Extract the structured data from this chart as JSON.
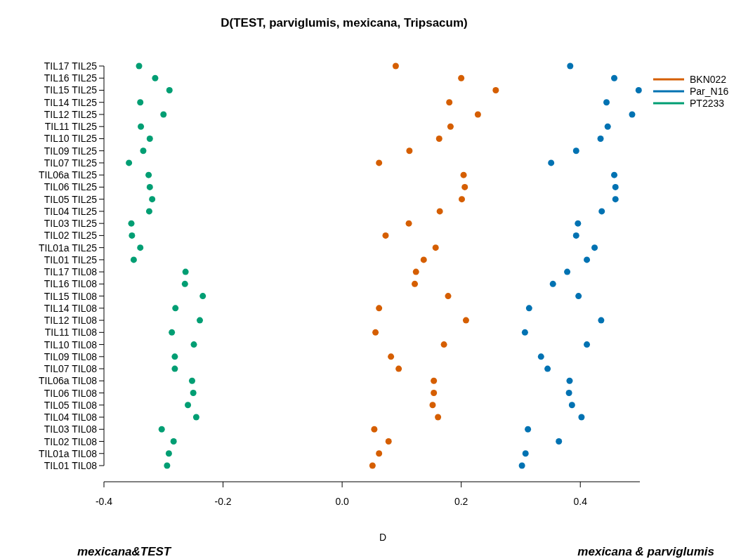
{
  "chart_data": {
    "type": "scatter",
    "orientation": "horizontal",
    "title": "D(TEST, parviglumis, mexicana, Tripsacum)",
    "xlabel": "D",
    "categories": [
      "TIL17 TIL25",
      "TIL16 TIL25",
      "TIL15 TIL25",
      "TIL14 TIL25",
      "TIL12 TIL25",
      "TIL11 TIL25",
      "TIL10 TIL25",
      "TIL09 TIL25",
      "TIL07 TIL25",
      "TIL06a TIL25",
      "TIL06 TIL25",
      "TIL05 TIL25",
      "TIL04 TIL25",
      "TIL03 TIL25",
      "TIL02 TIL25",
      "TIL01a TIL25",
      "TIL01 TIL25",
      "TIL17 TIL08",
      "TIL16 TIL08",
      "TIL15 TIL08",
      "TIL14 TIL08",
      "TIL12 TIL08",
      "TIL11 TIL08",
      "TIL10 TIL08",
      "TIL09 TIL08",
      "TIL07 TIL08",
      "TIL06a TIL08",
      "TIL06 TIL08",
      "TIL05 TIL08",
      "TIL04 TIL08",
      "TIL03 TIL08",
      "TIL02 TIL08",
      "TIL01a TIL08",
      "TIL01 TIL08"
    ],
    "series": [
      {
        "name": "BKN022",
        "color": "#d55e00",
        "values": [
          0.09,
          0.2,
          0.258,
          0.18,
          0.228,
          0.182,
          0.163,
          0.113,
          0.062,
          0.204,
          0.206,
          0.201,
          0.164,
          0.112,
          0.073,
          0.157,
          0.137,
          0.124,
          0.122,
          0.178,
          0.062,
          0.208,
          0.056,
          0.171,
          0.082,
          0.095,
          0.154,
          0.154,
          0.152,
          0.161,
          0.054,
          0.078,
          0.062,
          0.051
        ]
      },
      {
        "name": "Par_N16",
        "color": "#0072b2",
        "values": [
          0.383,
          0.457,
          0.498,
          0.444,
          0.487,
          0.446,
          0.434,
          0.393,
          0.351,
          0.457,
          0.459,
          0.459,
          0.436,
          0.396,
          0.393,
          0.424,
          0.411,
          0.378,
          0.354,
          0.397,
          0.314,
          0.435,
          0.307,
          0.411,
          0.334,
          0.345,
          0.382,
          0.381,
          0.386,
          0.402,
          0.312,
          0.364,
          0.308,
          0.302
        ]
      },
      {
        "name": "PT2233",
        "color": "#009e73",
        "values": [
          -0.341,
          -0.314,
          -0.29,
          -0.339,
          -0.3,
          -0.338,
          -0.323,
          -0.334,
          -0.358,
          -0.325,
          -0.323,
          -0.319,
          -0.324,
          -0.354,
          -0.353,
          -0.339,
          -0.35,
          -0.263,
          -0.264,
          -0.234,
          -0.28,
          -0.239,
          -0.286,
          -0.249,
          -0.281,
          -0.281,
          -0.252,
          -0.25,
          -0.259,
          -0.245,
          -0.303,
          -0.283,
          -0.291,
          -0.294
        ]
      }
    ],
    "xlim": [
      -0.4,
      0.5
    ],
    "xticks": [
      {
        "value": -0.4,
        "label": "-0.4"
      },
      {
        "value": -0.2,
        "label": "-0.2"
      },
      {
        "value": 0,
        "label": "0.0"
      },
      {
        "value": 0.2,
        "label": "0.2"
      },
      {
        "value": 0.4,
        "label": "0.4"
      }
    ],
    "marker": "circle",
    "legend": "top right",
    "grid": false,
    "annotations": [
      "mexicana&TEST",
      "mexicana & parviglumis"
    ]
  }
}
